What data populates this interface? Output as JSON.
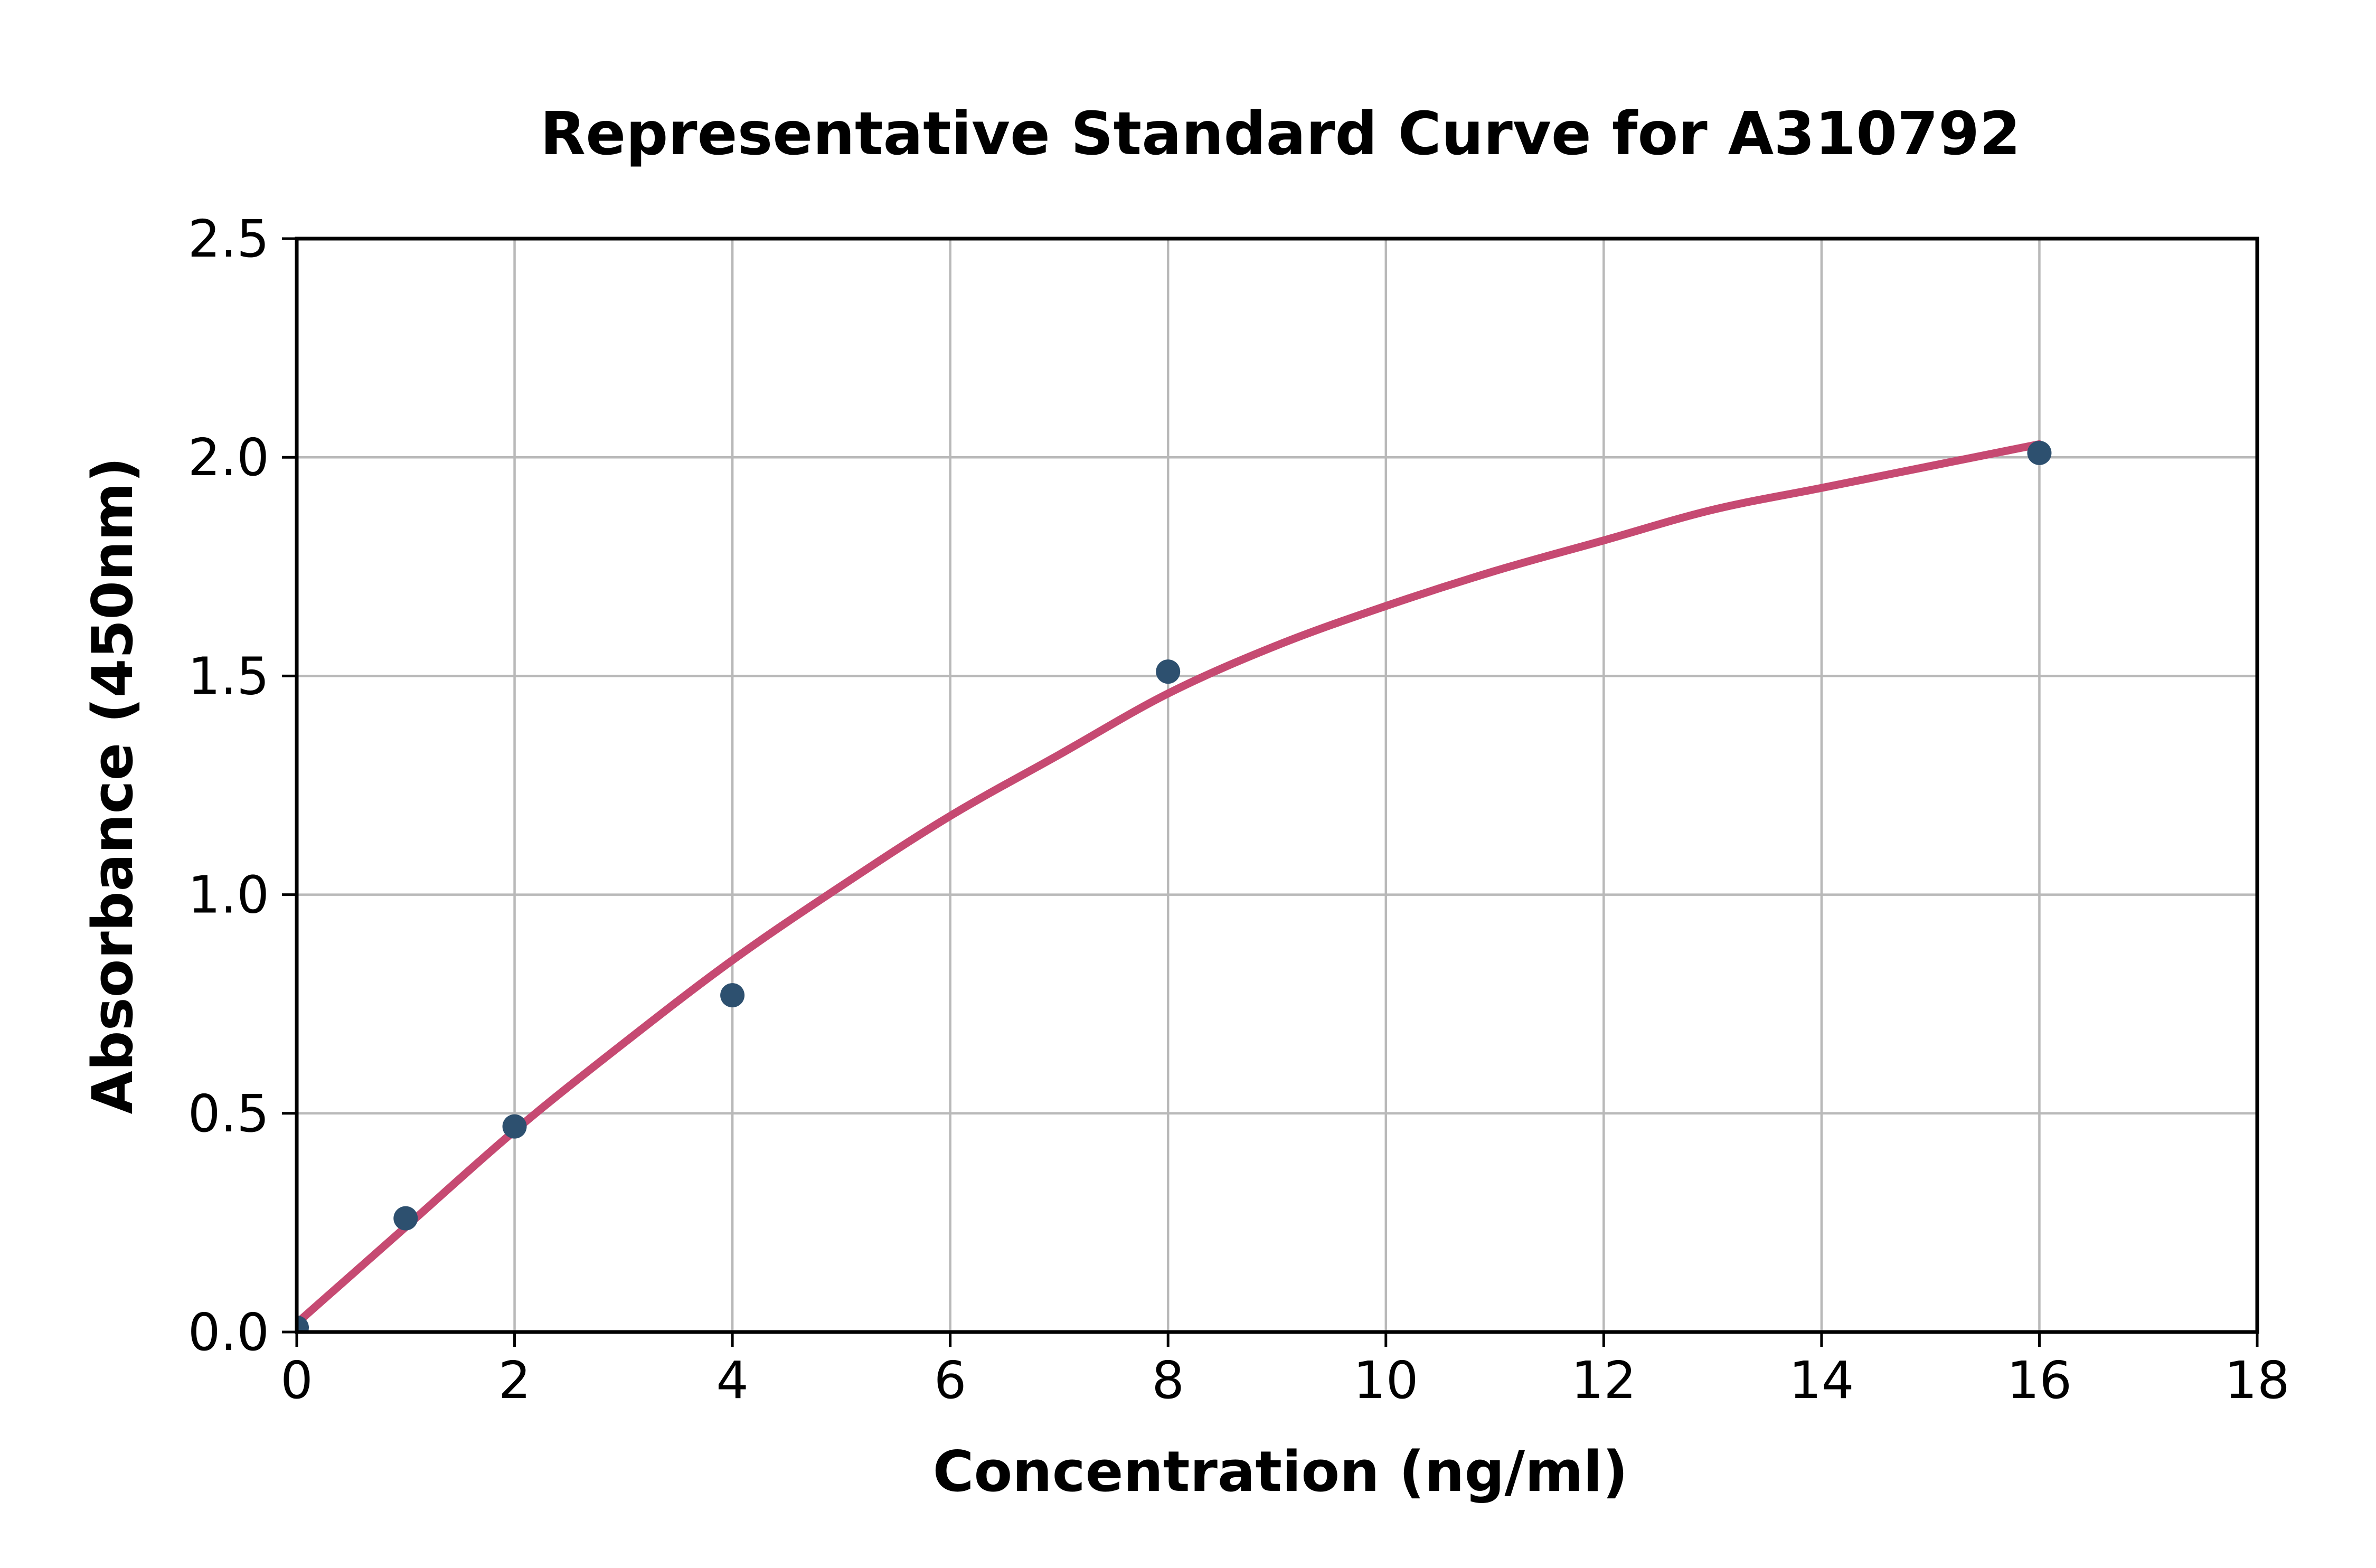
{
  "chart_data": {
    "type": "scatter",
    "title": "Representative Standard Curve for A310792",
    "xlabel": "Concentration (ng/ml)",
    "ylabel": "Absorbance (450nm)",
    "xlim": [
      0,
      18
    ],
    "ylim": [
      0,
      2.5
    ],
    "x_ticks": [
      0,
      2,
      4,
      6,
      8,
      10,
      12,
      14,
      16,
      18
    ],
    "x_tick_labels": [
      "0",
      "2",
      "4",
      "6",
      "8",
      "10",
      "12",
      "14",
      "16",
      "18"
    ],
    "y_ticks": [
      0,
      0.5,
      1.0,
      1.5,
      2.0,
      2.5
    ],
    "y_tick_labels": [
      "0.0",
      "0.5",
      "1.0",
      "1.5",
      "2.0",
      "2.5"
    ],
    "grid": "on",
    "legend": "none",
    "series": [
      {
        "name": "standard-points",
        "type": "scatter",
        "points": [
          {
            "x": 0,
            "y": 0.01
          },
          {
            "x": 1,
            "y": 0.26
          },
          {
            "x": 2,
            "y": 0.47
          },
          {
            "x": 4,
            "y": 0.77
          },
          {
            "x": 8,
            "y": 1.51
          },
          {
            "x": 16,
            "y": 2.01
          }
        ]
      },
      {
        "name": "fit-curve",
        "type": "line",
        "points": [
          {
            "x": 0,
            "y": 0.02
          },
          {
            "x": 1,
            "y": 0.24
          },
          {
            "x": 2,
            "y": 0.46
          },
          {
            "x": 3,
            "y": 0.66
          },
          {
            "x": 4,
            "y": 0.85
          },
          {
            "x": 5,
            "y": 1.02
          },
          {
            "x": 6,
            "y": 1.18
          },
          {
            "x": 7,
            "y": 1.32
          },
          {
            "x": 8,
            "y": 1.46
          },
          {
            "x": 9,
            "y": 1.57
          },
          {
            "x": 10,
            "y": 1.66
          },
          {
            "x": 11,
            "y": 1.74
          },
          {
            "x": 12,
            "y": 1.81
          },
          {
            "x": 13,
            "y": 1.88
          },
          {
            "x": 14,
            "y": 1.93
          },
          {
            "x": 15,
            "y": 1.98
          },
          {
            "x": 16,
            "y": 2.03
          }
        ]
      }
    ],
    "colors": {
      "marker": "#2d506f",
      "line": "#c64a72",
      "grid": "#b9b9b9",
      "axis": "#000000",
      "text": "#000000",
      "background": "#ffffff"
    }
  }
}
